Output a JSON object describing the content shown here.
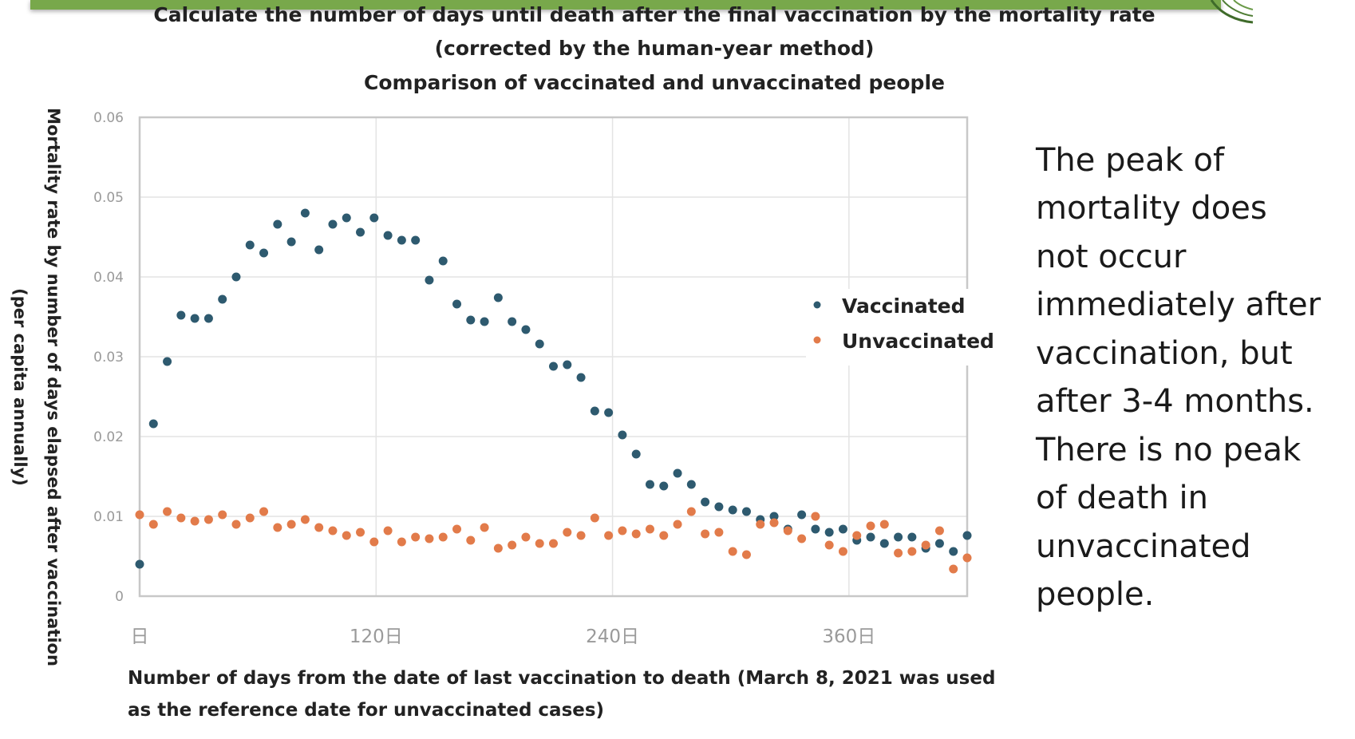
{
  "colors": {
    "header_bar": "#78a84b",
    "vaccinated": "#2e5a6f",
    "unvaccinated": "#e27b4a",
    "grid": "#e4e4e4",
    "axis": "#c8c8c8"
  },
  "side_text": "The peak of\nmortality does\nnot occur\nimmediately after\nvaccination, but\nafter 3-4 months.\nThere is no peak\nof death in\nunvaccinated\npeople.",
  "chart_data": {
    "type": "scatter",
    "title": [
      "Calculate the number of days until death after the final vaccination by the mortality rate",
      "(corrected by the human-year method)",
      "Comparison of vaccinated and unvaccinated people"
    ],
    "ylabel": [
      "Mortality rate by number of days elapsed after vaccination",
      "(per capita annually)"
    ],
    "xlabel": [
      "Number of days from the date of last vaccination to death (March 8, 2021 was used",
      "as the reference date for unvaccinated cases)"
    ],
    "xlim": [
      0,
      420
    ],
    "ylim": [
      0,
      0.06
    ],
    "grid": true,
    "legend_position": "right",
    "x_ticks": [
      {
        "value": 0,
        "label": "日"
      },
      {
        "value": 120,
        "label": "120日"
      },
      {
        "value": 240,
        "label": "240日"
      },
      {
        "value": 360,
        "label": "360日"
      }
    ],
    "y_ticks": [
      {
        "value": 0,
        "label": "0"
      },
      {
        "value": 0.01,
        "label": "0.01"
      },
      {
        "value": 0.02,
        "label": "0.02"
      },
      {
        "value": 0.03,
        "label": "0.03"
      },
      {
        "value": 0.04,
        "label": "0.04"
      },
      {
        "value": 0.05,
        "label": "0.05"
      },
      {
        "value": 0.06,
        "label": "0.06"
      }
    ],
    "series": [
      {
        "name": "Vaccinated",
        "color": "#2e5a6f",
        "points": [
          [
            0,
            0.004
          ],
          [
            7,
            0.0216
          ],
          [
            14,
            0.0294
          ],
          [
            21,
            0.0352
          ],
          [
            28,
            0.0348
          ],
          [
            35,
            0.0348
          ],
          [
            42,
            0.0372
          ],
          [
            49,
            0.04
          ],
          [
            56,
            0.044
          ],
          [
            63,
            0.043
          ],
          [
            70,
            0.0466
          ],
          [
            77,
            0.0444
          ],
          [
            84,
            0.048
          ],
          [
            91,
            0.0434
          ],
          [
            98,
            0.0466
          ],
          [
            105,
            0.0474
          ],
          [
            112,
            0.0456
          ],
          [
            119,
            0.0474
          ],
          [
            126,
            0.0452
          ],
          [
            133,
            0.0446
          ],
          [
            140,
            0.0446
          ],
          [
            147,
            0.0396
          ],
          [
            154,
            0.042
          ],
          [
            161,
            0.0366
          ],
          [
            168,
            0.0346
          ],
          [
            175,
            0.0344
          ],
          [
            182,
            0.0374
          ],
          [
            189,
            0.0344
          ],
          [
            196,
            0.0334
          ],
          [
            203,
            0.0316
          ],
          [
            210,
            0.0288
          ],
          [
            217,
            0.029
          ],
          [
            224,
            0.0274
          ],
          [
            231,
            0.0232
          ],
          [
            238,
            0.023
          ],
          [
            245,
            0.0202
          ],
          [
            252,
            0.0178
          ],
          [
            259,
            0.014
          ],
          [
            266,
            0.0138
          ],
          [
            273,
            0.0154
          ],
          [
            280,
            0.014
          ],
          [
            287,
            0.0118
          ],
          [
            294,
            0.0112
          ],
          [
            301,
            0.0108
          ],
          [
            308,
            0.0106
          ],
          [
            315,
            0.0096
          ],
          [
            322,
            0.01
          ],
          [
            329,
            0.0084
          ],
          [
            336,
            0.0102
          ],
          [
            343,
            0.0084
          ],
          [
            350,
            0.008
          ],
          [
            357,
            0.0084
          ],
          [
            364,
            0.007
          ],
          [
            371,
            0.0074
          ],
          [
            378,
            0.0066
          ],
          [
            385,
            0.0074
          ],
          [
            392,
            0.0074
          ],
          [
            399,
            0.006
          ],
          [
            406,
            0.0066
          ],
          [
            413,
            0.0056
          ],
          [
            420,
            0.0076
          ]
        ]
      },
      {
        "name": "Unvaccinated",
        "color": "#e27b4a",
        "points": [
          [
            0,
            0.0102
          ],
          [
            7,
            0.009
          ],
          [
            14,
            0.0106
          ],
          [
            21,
            0.0098
          ],
          [
            28,
            0.0094
          ],
          [
            35,
            0.0096
          ],
          [
            42,
            0.0102
          ],
          [
            49,
            0.009
          ],
          [
            56,
            0.0098
          ],
          [
            63,
            0.0106
          ],
          [
            70,
            0.0086
          ],
          [
            77,
            0.009
          ],
          [
            84,
            0.0096
          ],
          [
            91,
            0.0086
          ],
          [
            98,
            0.0082
          ],
          [
            105,
            0.0076
          ],
          [
            112,
            0.008
          ],
          [
            119,
            0.0068
          ],
          [
            126,
            0.0082
          ],
          [
            133,
            0.0068
          ],
          [
            140,
            0.0074
          ],
          [
            147,
            0.0072
          ],
          [
            154,
            0.0074
          ],
          [
            161,
            0.0084
          ],
          [
            168,
            0.007
          ],
          [
            175,
            0.0086
          ],
          [
            182,
            0.006
          ],
          [
            189,
            0.0064
          ],
          [
            196,
            0.0074
          ],
          [
            203,
            0.0066
          ],
          [
            210,
            0.0066
          ],
          [
            217,
            0.008
          ],
          [
            224,
            0.0076
          ],
          [
            231,
            0.0098
          ],
          [
            238,
            0.0076
          ],
          [
            245,
            0.0082
          ],
          [
            252,
            0.0078
          ],
          [
            259,
            0.0084
          ],
          [
            266,
            0.0076
          ],
          [
            273,
            0.009
          ],
          [
            280,
            0.0106
          ],
          [
            287,
            0.0078
          ],
          [
            294,
            0.008
          ],
          [
            301,
            0.0056
          ],
          [
            308,
            0.0052
          ],
          [
            315,
            0.009
          ],
          [
            322,
            0.0092
          ],
          [
            329,
            0.0082
          ],
          [
            336,
            0.0072
          ],
          [
            343,
            0.01
          ],
          [
            350,
            0.0064
          ],
          [
            357,
            0.0056
          ],
          [
            364,
            0.0076
          ],
          [
            371,
            0.0088
          ],
          [
            378,
            0.009
          ],
          [
            385,
            0.0054
          ],
          [
            392,
            0.0056
          ],
          [
            399,
            0.0064
          ],
          [
            406,
            0.0082
          ],
          [
            413,
            0.0034
          ],
          [
            420,
            0.0048
          ]
        ]
      }
    ]
  }
}
